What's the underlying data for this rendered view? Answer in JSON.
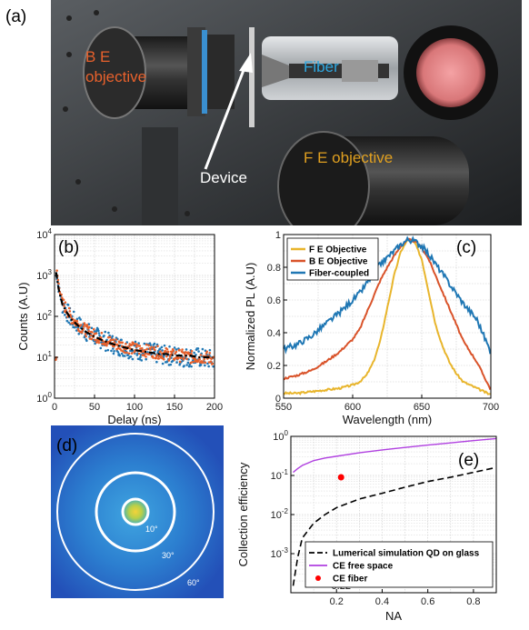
{
  "panel_a": {
    "label": "(a)",
    "be_label_line1": "B E",
    "be_label_line2": "objective",
    "fiber_label": "Fiber",
    "device_label": "Device",
    "fe_label": "F E objective",
    "colors": {
      "be": "#e8612c",
      "fiber": "#2ea7e0",
      "device": "#ffffff",
      "fe": "#e0a020"
    }
  },
  "chart_data": [
    {
      "panel": "(b)",
      "type": "scatter",
      "xlabel": "Delay (ns)",
      "ylabel": "Counts (A.U)",
      "xlim": [
        0,
        200
      ],
      "ylim": [
        1,
        10000
      ],
      "yscale": "log",
      "xticks": [
        "0",
        "50",
        "100",
        "150",
        "200"
      ],
      "yticks": [
        "10^0",
        "10^1",
        "10^2",
        "10^3",
        "10^4"
      ],
      "grid": true,
      "series": [
        {
          "color": "#1f77b4",
          "x": [
            2,
            5,
            10,
            20,
            30,
            40,
            50,
            60,
            70,
            80,
            90,
            100,
            110,
            120,
            130,
            140,
            150,
            160,
            170,
            180,
            190,
            198
          ],
          "y": [
            1300,
            500,
            200,
            90,
            60,
            42,
            33,
            27,
            22,
            19,
            17,
            15,
            14,
            13,
            12,
            11,
            11,
            10,
            10,
            10,
            9,
            9
          ]
        },
        {
          "color": "#e8612c",
          "x": [
            2,
            5,
            10,
            20,
            30,
            40,
            50,
            60,
            70,
            80,
            90,
            100,
            110,
            120,
            130,
            140,
            150,
            160,
            170,
            180,
            190,
            198
          ],
          "y": [
            1400,
            520,
            210,
            95,
            62,
            44,
            34,
            28,
            23,
            20,
            18,
            16,
            15,
            14,
            13,
            12,
            11,
            11,
            10,
            10,
            10,
            9
          ]
        },
        {
          "style": "dash-dot",
          "color": "#000000",
          "x": [
            2,
            5,
            10,
            20,
            30,
            40,
            50,
            60,
            70,
            80,
            90,
            100,
            110,
            120,
            130,
            140,
            150,
            160,
            170,
            180,
            190,
            198
          ],
          "y": [
            1200,
            480,
            190,
            88,
            58,
            41,
            32,
            26,
            22,
            19,
            17,
            15,
            14,
            13,
            12,
            12,
            11,
            11,
            11,
            10,
            10,
            10
          ]
        }
      ]
    },
    {
      "panel": "(c)",
      "type": "line",
      "xlabel": "Wavelength (nm)",
      "ylabel": "Normalized PL (A.U)",
      "xlim": [
        550,
        700
      ],
      "ylim": [
        0,
        1
      ],
      "xticks": [
        "550",
        "600",
        "650",
        "700"
      ],
      "yticks": [
        "0",
        "0.2",
        "0.4",
        "0.6",
        "0.8",
        "1"
      ],
      "grid": true,
      "legend_position": "top-left",
      "series": [
        {
          "name": "F E Objective",
          "color": "#e8b52c",
          "x": [
            550,
            560,
            570,
            580,
            590,
            600,
            605,
            610,
            615,
            620,
            625,
            630,
            635,
            640,
            645,
            650,
            655,
            660,
            665,
            670,
            675,
            680,
            690,
            700
          ],
          "y": [
            0.03,
            0.03,
            0.04,
            0.05,
            0.06,
            0.08,
            0.1,
            0.14,
            0.22,
            0.35,
            0.55,
            0.75,
            0.9,
            0.97,
            0.95,
            0.85,
            0.65,
            0.45,
            0.32,
            0.22,
            0.15,
            0.1,
            0.06,
            0.02
          ]
        },
        {
          "name": "B E Objective",
          "color": "#d9532a",
          "x": [
            550,
            560,
            570,
            580,
            590,
            600,
            605,
            610,
            615,
            620,
            625,
            630,
            635,
            640,
            645,
            650,
            655,
            660,
            665,
            670,
            675,
            680,
            690,
            700
          ],
          "y": [
            0.12,
            0.14,
            0.17,
            0.22,
            0.28,
            0.36,
            0.42,
            0.52,
            0.62,
            0.72,
            0.8,
            0.87,
            0.93,
            0.97,
            0.96,
            0.92,
            0.85,
            0.75,
            0.65,
            0.55,
            0.45,
            0.35,
            0.22,
            0.05
          ]
        },
        {
          "name": "Fiber-coupled",
          "color": "#1f77b4",
          "x": [
            550,
            560,
            570,
            580,
            590,
            600,
            605,
            610,
            615,
            620,
            625,
            630,
            635,
            640,
            645,
            650,
            655,
            660,
            665,
            670,
            675,
            680,
            690,
            700
          ],
          "y": [
            0.3,
            0.33,
            0.38,
            0.45,
            0.52,
            0.6,
            0.64,
            0.7,
            0.76,
            0.82,
            0.86,
            0.9,
            0.94,
            0.97,
            0.96,
            0.93,
            0.88,
            0.82,
            0.76,
            0.7,
            0.64,
            0.58,
            0.48,
            0.28
          ]
        }
      ]
    },
    {
      "panel": "(e)",
      "type": "line",
      "xlabel": "NA",
      "ylabel": "Collection efficiency",
      "xlim": [
        0.0,
        0.9
      ],
      "ylim": [
        0.0001,
        1
      ],
      "yscale": "log",
      "xticks": [
        "0.2",
        "0.22",
        "0.4",
        "0.6",
        "0.8"
      ],
      "yticks": [
        "10^-3",
        "10^-2",
        "10^-1",
        "10^0"
      ],
      "grid": true,
      "legend_position": "bottom-right",
      "series": [
        {
          "name": "Lumerical simulation QD  on glass",
          "color": "#000000",
          "style": "dashed",
          "x": [
            0.01,
            0.03,
            0.05,
            0.1,
            0.15,
            0.2,
            0.3,
            0.4,
            0.5,
            0.6,
            0.7,
            0.8,
            0.9
          ],
          "y": [
            0.00015,
            0.0008,
            0.0025,
            0.006,
            0.01,
            0.015,
            0.025,
            0.035,
            0.05,
            0.07,
            0.09,
            0.12,
            0.16
          ]
        },
        {
          "name": "CE free space",
          "color": "#b040e0",
          "x": [
            0.01,
            0.03,
            0.05,
            0.1,
            0.15,
            0.2,
            0.3,
            0.4,
            0.5,
            0.6,
            0.7,
            0.8,
            0.9
          ],
          "y": [
            0.12,
            0.15,
            0.18,
            0.24,
            0.28,
            0.31,
            0.38,
            0.45,
            0.52,
            0.6,
            0.68,
            0.78,
            0.88
          ]
        },
        {
          "name": "CE fiber",
          "color": "#ff0000",
          "style": "marker",
          "x": [
            0.22
          ],
          "y": [
            0.09
          ]
        }
      ]
    }
  ],
  "panel_b": {
    "label": "(b)"
  },
  "panel_c": {
    "label": "(c)"
  },
  "panel_d": {
    "label": "(d)",
    "ring_labels": [
      "10°",
      "30°",
      "60°"
    ]
  },
  "panel_e": {
    "label": "(e)"
  }
}
